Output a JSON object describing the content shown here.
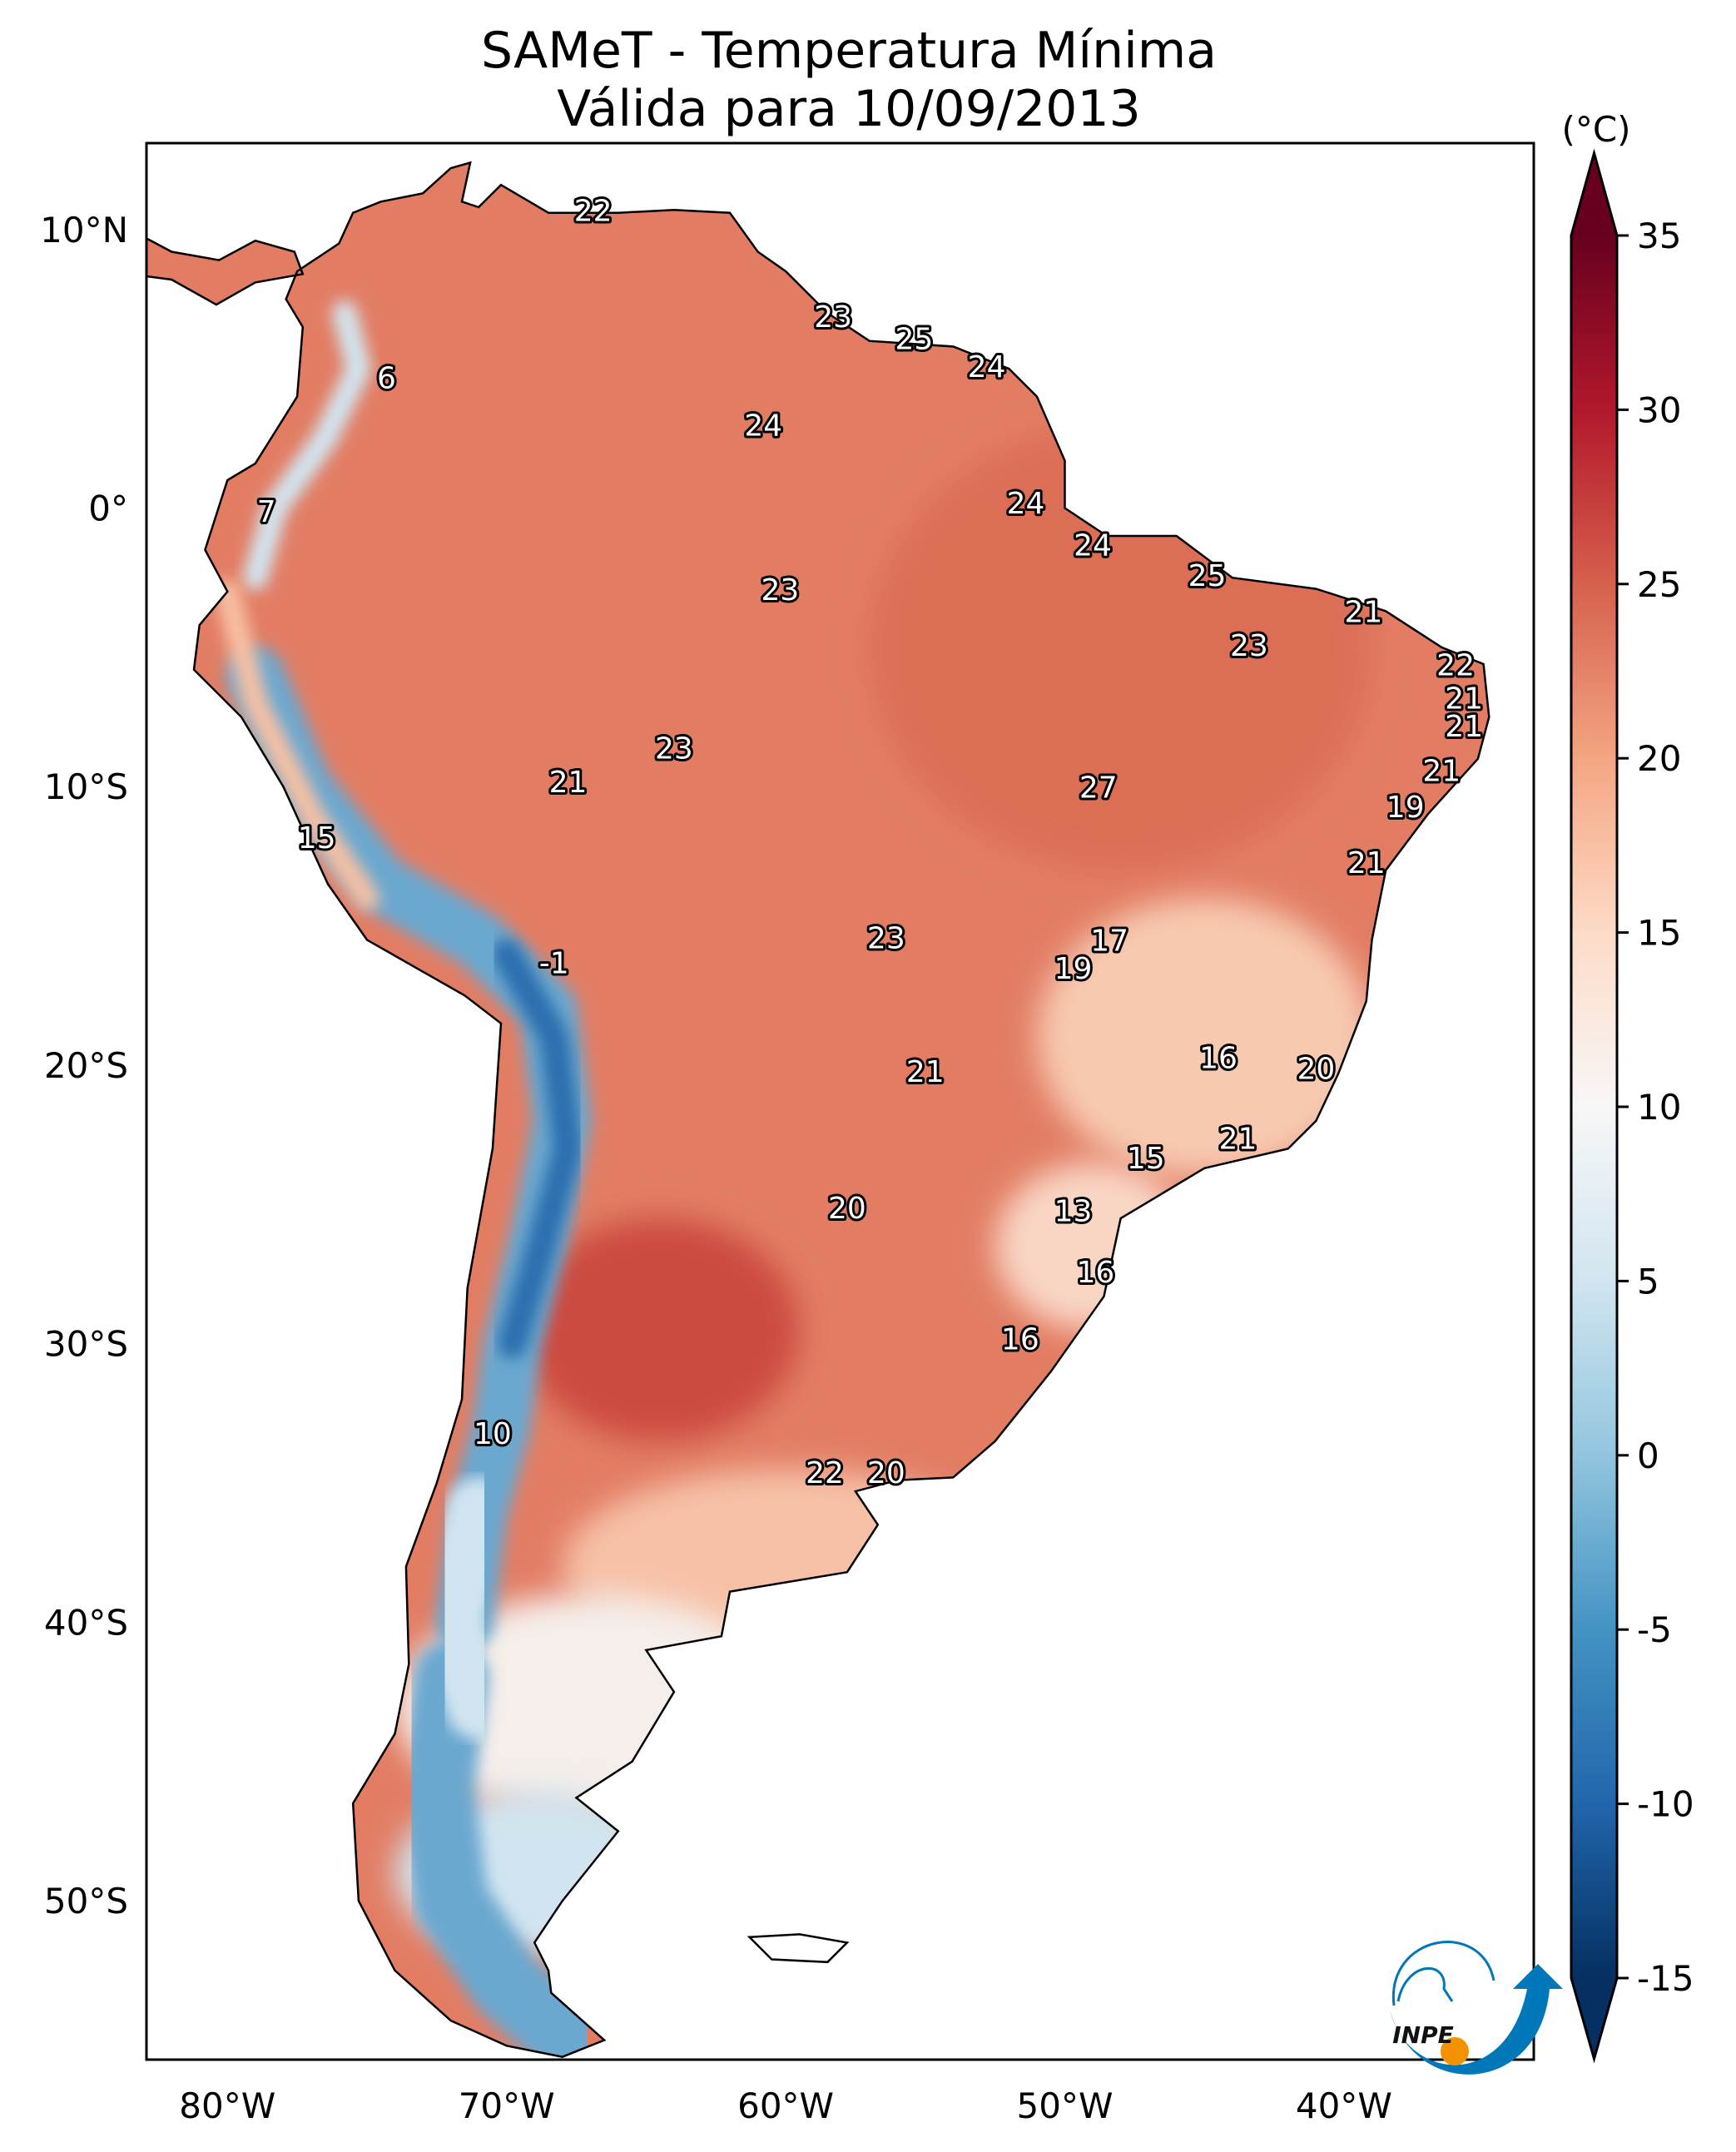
{
  "title": {
    "line1": "SAMeT - Temperatura Mínima",
    "line2": "Válida para 10/09/2013"
  },
  "map": {
    "lon_range": [
      -82.9,
      -33.2
    ],
    "lat_range": [
      13.1,
      -55.7
    ],
    "lon_ticks": [
      {
        "lon": -80,
        "label": "80°W"
      },
      {
        "lon": -70,
        "label": "70°W"
      },
      {
        "lon": -60,
        "label": "60°W"
      },
      {
        "lon": -50,
        "label": "50°W"
      },
      {
        "lon": -40,
        "label": "40°W"
      }
    ],
    "lat_ticks": [
      {
        "lat": 10,
        "label": "10°N"
      },
      {
        "lat": 0,
        "label": "0°"
      },
      {
        "lat": -10,
        "label": "10°S"
      },
      {
        "lat": -20,
        "label": "20°S"
      },
      {
        "lat": -30,
        "label": "30°S"
      },
      {
        "lat": -40,
        "label": "40°S"
      },
      {
        "lat": -50,
        "label": "50°S"
      }
    ],
    "stations": [
      {
        "lon": -66.9,
        "lat": 10.6,
        "value": "22"
      },
      {
        "lon": -58.3,
        "lat": 6.8,
        "value": "23"
      },
      {
        "lon": -55.4,
        "lat": 6.0,
        "value": "25"
      },
      {
        "lon": -52.8,
        "lat": 5.0,
        "value": "24"
      },
      {
        "lon": -74.3,
        "lat": 4.6,
        "value": "6"
      },
      {
        "lon": -60.8,
        "lat": 2.9,
        "value": "24"
      },
      {
        "lon": -78.6,
        "lat": -0.2,
        "value": "7"
      },
      {
        "lon": -51.4,
        "lat": 0.1,
        "value": "24"
      },
      {
        "lon": -49.0,
        "lat": -1.4,
        "value": "24"
      },
      {
        "lon": -44.9,
        "lat": -2.5,
        "value": "25"
      },
      {
        "lon": -60.2,
        "lat": -3.0,
        "value": "23"
      },
      {
        "lon": -39.3,
        "lat": -3.8,
        "value": "21"
      },
      {
        "lon": -43.4,
        "lat": -5.0,
        "value": "23"
      },
      {
        "lon": -36.0,
        "lat": -5.7,
        "value": "22"
      },
      {
        "lon": -35.7,
        "lat": -6.9,
        "value": "21"
      },
      {
        "lon": -35.7,
        "lat": -7.9,
        "value": "21"
      },
      {
        "lon": -64.0,
        "lat": -8.7,
        "value": "23"
      },
      {
        "lon": -36.5,
        "lat": -9.5,
        "value": "21"
      },
      {
        "lon": -67.8,
        "lat": -9.9,
        "value": "21"
      },
      {
        "lon": -48.8,
        "lat": -10.1,
        "value": "27"
      },
      {
        "lon": -37.8,
        "lat": -10.8,
        "value": "19"
      },
      {
        "lon": -76.8,
        "lat": -11.9,
        "value": "15"
      },
      {
        "lon": -39.2,
        "lat": -12.8,
        "value": "21"
      },
      {
        "lon": -56.4,
        "lat": -15.5,
        "value": "23"
      },
      {
        "lon": -48.4,
        "lat": -15.6,
        "value": "17"
      },
      {
        "lon": -68.3,
        "lat": -16.4,
        "value": "-1"
      },
      {
        "lon": -49.7,
        "lat": -16.6,
        "value": "19"
      },
      {
        "lon": -44.5,
        "lat": -19.8,
        "value": "16"
      },
      {
        "lon": -55.0,
        "lat": -20.3,
        "value": "21"
      },
      {
        "lon": -41.0,
        "lat": -20.2,
        "value": "20"
      },
      {
        "lon": -43.8,
        "lat": -22.7,
        "value": "21"
      },
      {
        "lon": -47.1,
        "lat": -23.4,
        "value": "15"
      },
      {
        "lon": -49.7,
        "lat": -25.3,
        "value": "13"
      },
      {
        "lon": -57.8,
        "lat": -25.2,
        "value": "20"
      },
      {
        "lon": -48.9,
        "lat": -27.5,
        "value": "16"
      },
      {
        "lon": -51.6,
        "lat": -29.9,
        "value": "16"
      },
      {
        "lon": -70.5,
        "lat": -33.3,
        "value": "10"
      },
      {
        "lon": -58.6,
        "lat": -34.7,
        "value": "22"
      },
      {
        "lon": -56.4,
        "lat": -34.7,
        "value": "20"
      }
    ]
  },
  "colorbar": {
    "unit_label": "(°C)",
    "range": [
      -15,
      35
    ],
    "extend": "both",
    "colormap": "RdBu_r",
    "colors": [
      "#053061",
      "#2166ac",
      "#4393c3",
      "#92c5de",
      "#d1e5f0",
      "#f7f7f7",
      "#fddbc7",
      "#f4a582",
      "#d6604d",
      "#b2182b",
      "#67001f"
    ],
    "ticks": [
      "35",
      "30",
      "25",
      "20",
      "15",
      "10",
      "5",
      "0",
      "-5",
      "-10",
      "-15"
    ]
  },
  "logo": {
    "text": "INPE",
    "colors": {
      "blue": "#0077b9",
      "orange": "#f39200"
    }
  }
}
